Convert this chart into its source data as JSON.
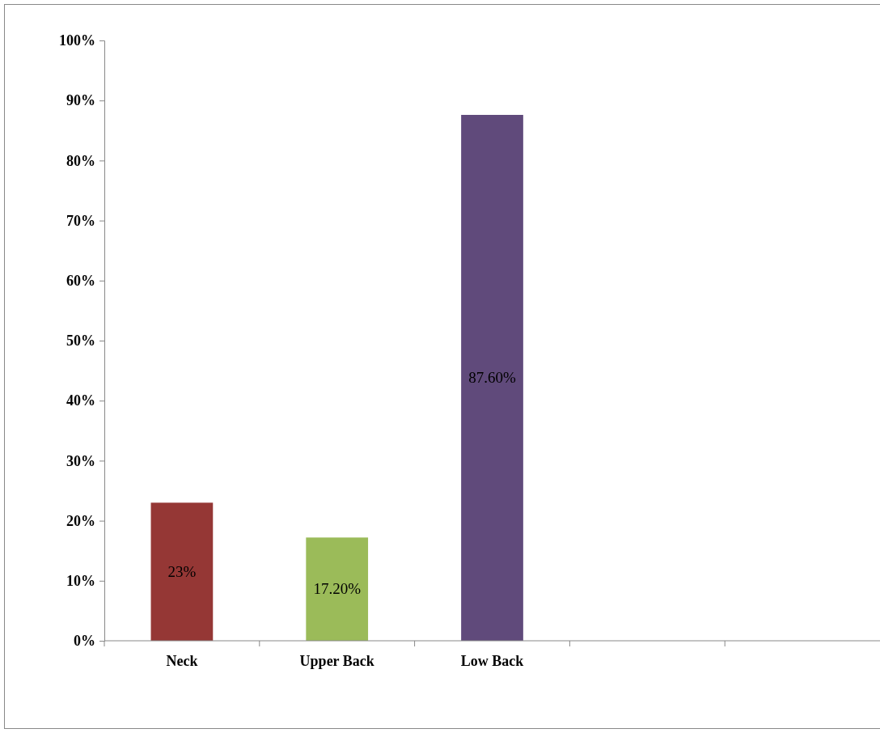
{
  "chart_data": {
    "type": "bar",
    "categories": [
      "Neck",
      "Upper Back",
      "Low Back",
      null,
      null
    ],
    "values": [
      23,
      17.2,
      87.6,
      null,
      null
    ],
    "colors": [
      "#953735",
      "#9bbb59",
      "#604a7b",
      null,
      null
    ],
    "value_labels": [
      "23%",
      "17.20%",
      "87.60%",
      null,
      null
    ],
    "ylim": [
      0,
      100
    ],
    "yticks": [
      {
        "value": 0,
        "label": "0%"
      },
      {
        "value": 10,
        "label": "10%"
      },
      {
        "value": 20,
        "label": "20%"
      },
      {
        "value": 30,
        "label": "30%"
      },
      {
        "value": 40,
        "label": "40%"
      },
      {
        "value": 50,
        "label": "50%"
      },
      {
        "value": 60,
        "label": "60%"
      },
      {
        "value": 70,
        "label": "70%"
      },
      {
        "value": 80,
        "label": "80%"
      },
      {
        "value": 90,
        "label": "90%"
      },
      {
        "value": 100,
        "label": "100%"
      }
    ],
    "grid": false
  }
}
